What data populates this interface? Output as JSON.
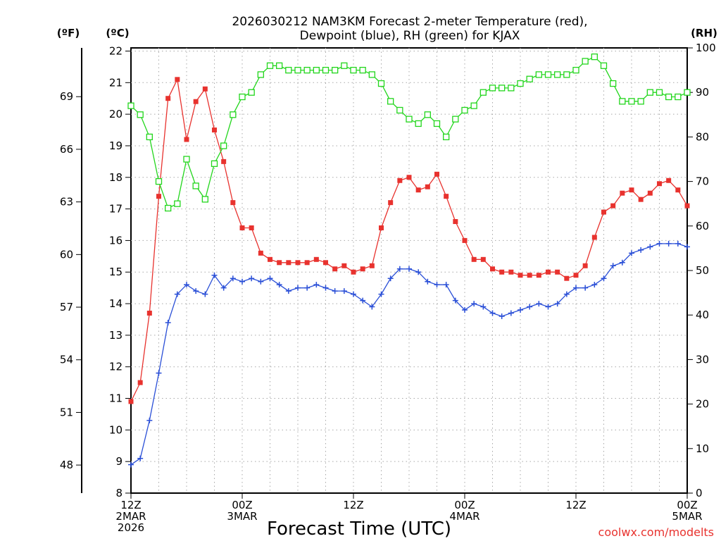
{
  "chart_data": {
    "type": "line",
    "title_lines": [
      "2026030212 NAM3KM Forecast 2-meter Temperature (red),",
      "Dewpoint (blue), RH (green) for KJAX"
    ],
    "xlabel": "Forecast Time (UTC)",
    "credit": "coolwx.com/modelts",
    "units": {
      "fahrenheit": "(ºF)",
      "celsius": "(ºC)",
      "rh": "(RH)"
    },
    "x_forecast_hours": [
      0,
      60
    ],
    "celsius_axis": {
      "range": [
        8,
        22.1
      ],
      "ticks": [
        "8",
        "9",
        "10",
        "11",
        "12",
        "13",
        "14",
        "15",
        "16",
        "17",
        "18",
        "19",
        "20",
        "21",
        "22"
      ]
    },
    "fahrenheit_axis": {
      "ticks": [
        "48",
        "51",
        "54",
        "57",
        "60",
        "63",
        "66",
        "69"
      ]
    },
    "rh_axis": {
      "range": [
        0,
        100
      ],
      "ticks": [
        "0",
        "10",
        "20",
        "30",
        "40",
        "50",
        "60",
        "70",
        "80",
        "90",
        "100"
      ]
    },
    "x_ticks": [
      {
        "hour": 0,
        "lines": [
          "12Z",
          "2MAR",
          "2026"
        ]
      },
      {
        "hour": 12,
        "lines": [
          "00Z",
          "3MAR"
        ]
      },
      {
        "hour": 24,
        "lines": [
          "12Z"
        ]
      },
      {
        "hour": 36,
        "lines": [
          "00Z",
          "4MAR"
        ]
      },
      {
        "hour": 48,
        "lines": [
          "12Z"
        ]
      },
      {
        "hour": 60,
        "lines": [
          "00Z",
          "5MAR"
        ]
      }
    ],
    "series": [
      {
        "name": "2-meter Temperature (ºC)",
        "color": "#e8322e",
        "axis": "celsius",
        "marker": "filled-square",
        "values": [
          10.9,
          11.5,
          13.7,
          17.4,
          20.5,
          21.1,
          19.2,
          20.4,
          20.8,
          19.5,
          18.5,
          17.2,
          16.4,
          16.4,
          15.6,
          15.4,
          15.3,
          15.3,
          15.3,
          15.3,
          15.4,
          15.3,
          15.1,
          15.2,
          15.0,
          15.1,
          15.2,
          16.4,
          17.2,
          17.9,
          18.0,
          17.6,
          17.7,
          18.1,
          17.4,
          16.6,
          16.0,
          15.4,
          15.4,
          15.1,
          15.0,
          15.0,
          14.9,
          14.9,
          14.9,
          15.0,
          15.0,
          14.8,
          14.9,
          15.2,
          16.1,
          16.9,
          17.1,
          17.5,
          17.6,
          17.3,
          17.5,
          17.8,
          17.9,
          17.6,
          17.1
        ]
      },
      {
        "name": "Dewpoint (ºC)",
        "color": "#2a4fd7",
        "axis": "celsius",
        "marker": "plus",
        "values": [
          8.9,
          9.1,
          10.3,
          11.8,
          13.4,
          14.3,
          14.6,
          14.4,
          14.3,
          14.9,
          14.5,
          14.8,
          14.7,
          14.8,
          14.7,
          14.8,
          14.6,
          14.4,
          14.5,
          14.5,
          14.6,
          14.5,
          14.4,
          14.4,
          14.3,
          14.1,
          13.9,
          14.3,
          14.8,
          15.1,
          15.1,
          15.0,
          14.7,
          14.6,
          14.6,
          14.1,
          13.8,
          14.0,
          13.9,
          13.7,
          13.6,
          13.7,
          13.8,
          13.9,
          14.0,
          13.9,
          14.0,
          14.3,
          14.5,
          14.5,
          14.6,
          14.8,
          15.2,
          15.3,
          15.6,
          15.7,
          15.8,
          15.9,
          15.9,
          15.9,
          15.8
        ]
      },
      {
        "name": "RH (%)",
        "color": "#22d61c",
        "axis": "rh",
        "marker": "open-square",
        "values": [
          87,
          85,
          80,
          70,
          64,
          65,
          75,
          69,
          66,
          74,
          78,
          85,
          89,
          90,
          94,
          96,
          96,
          95,
          95,
          95,
          95,
          95,
          95,
          96,
          95,
          95,
          94,
          92,
          88,
          86,
          84,
          83,
          85,
          83,
          80,
          84,
          86,
          87,
          90,
          91,
          91,
          91,
          92,
          93,
          94,
          94,
          94,
          94,
          95,
          97,
          98,
          96,
          92,
          88,
          88,
          88,
          90,
          90,
          89,
          89,
          90
        ]
      }
    ]
  }
}
